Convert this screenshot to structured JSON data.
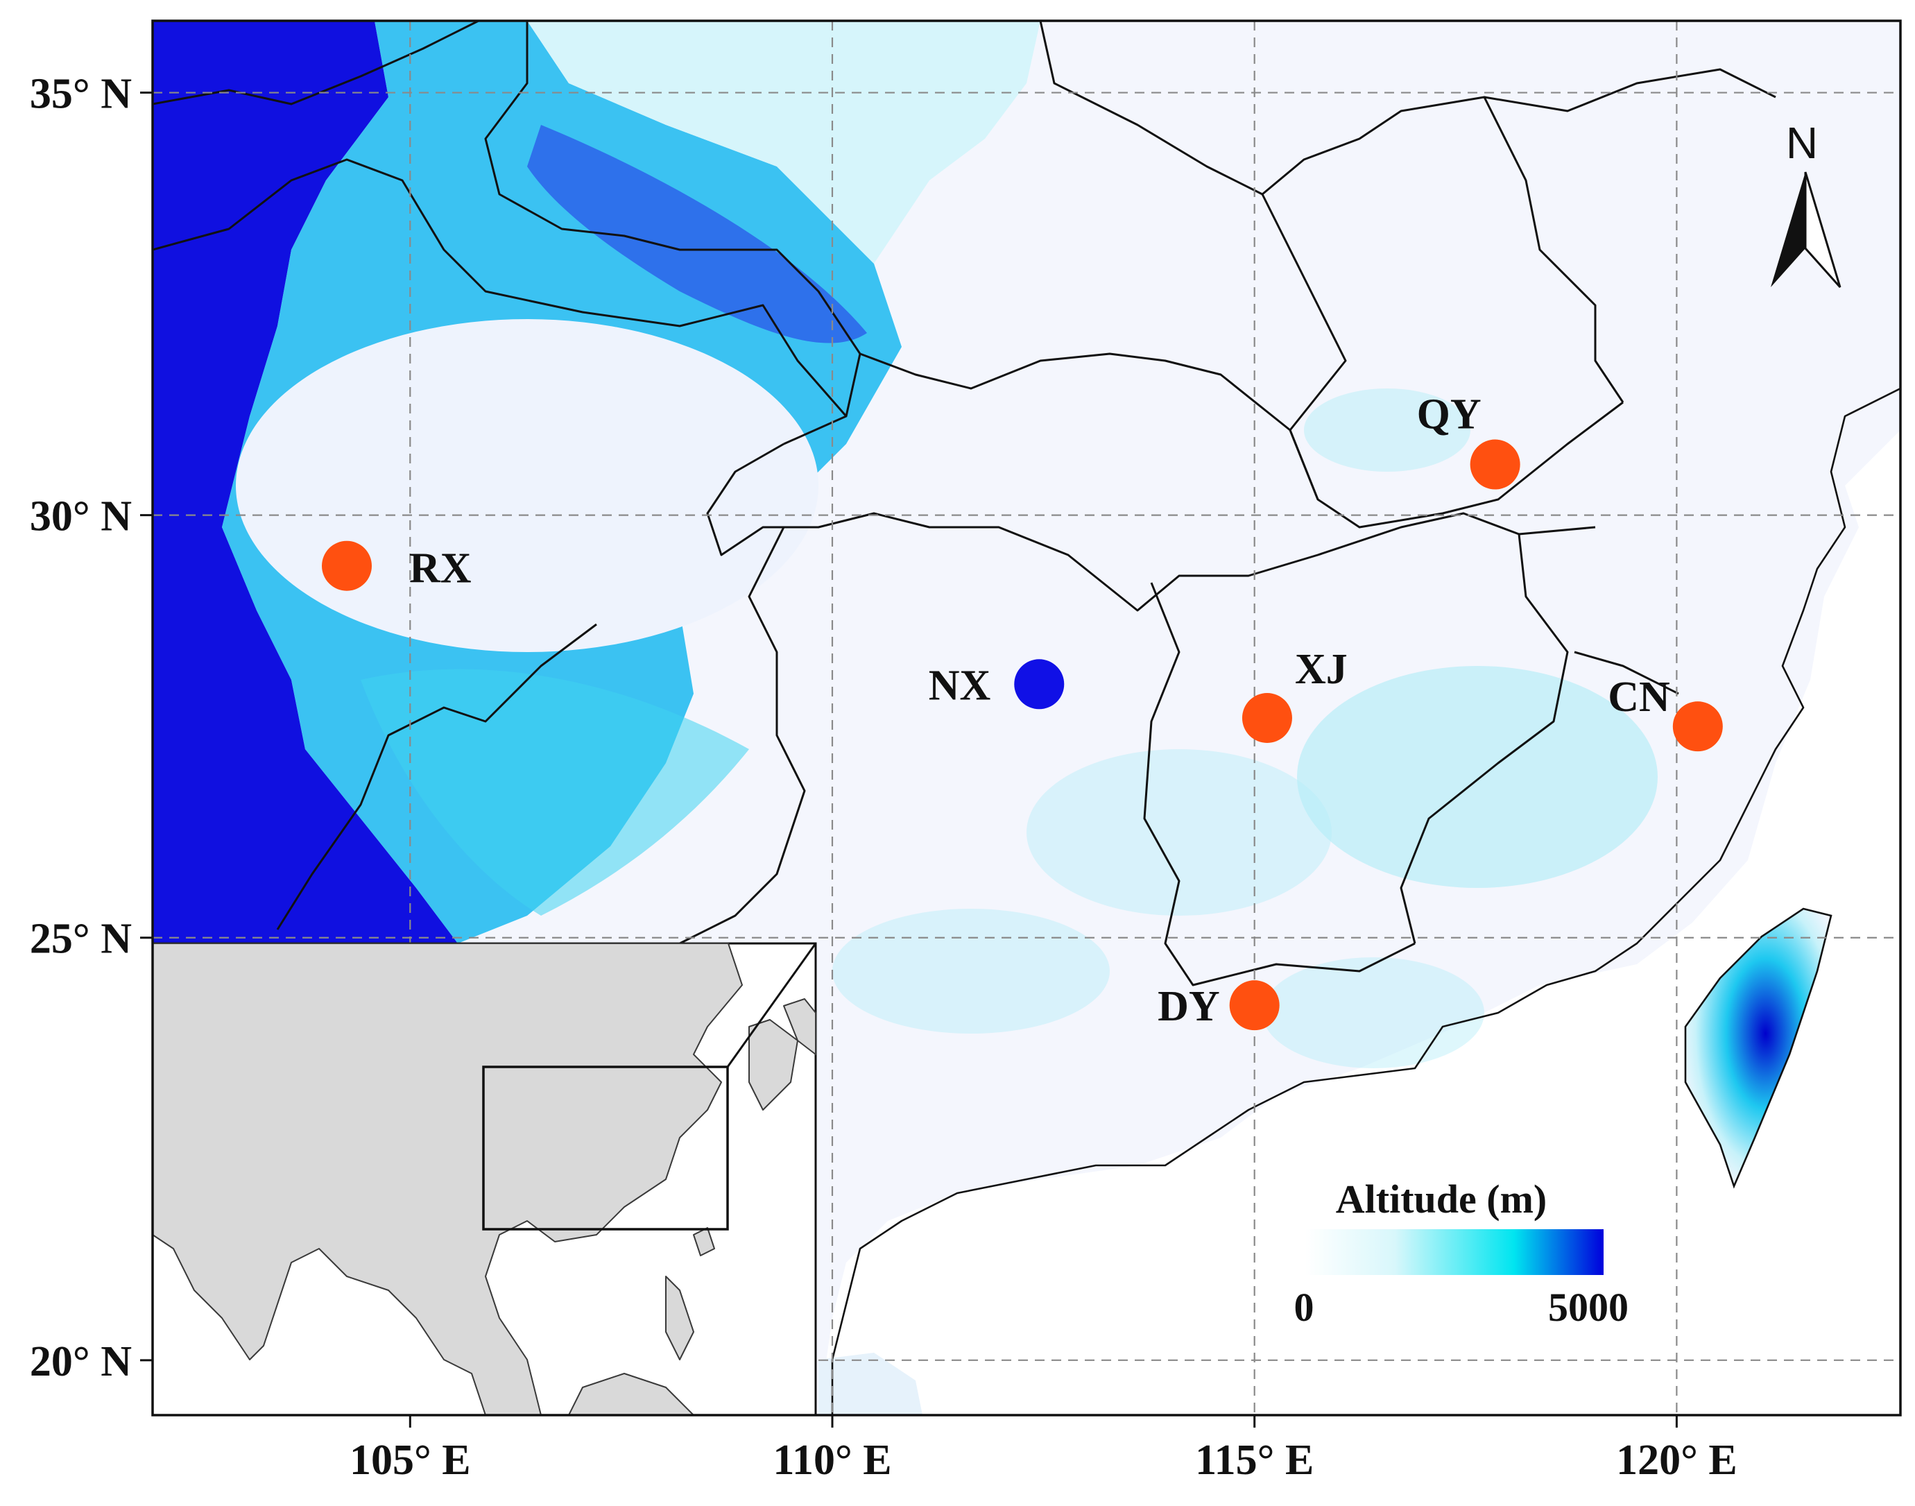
{
  "map": {
    "x_axis": {
      "ticks": [
        {
          "value": 105,
          "label": "105° E"
        },
        {
          "value": 110,
          "label": "110° E"
        },
        {
          "value": 115,
          "label": "115° E"
        },
        {
          "value": 120,
          "label": "120° E"
        }
      ]
    },
    "y_axis": {
      "ticks": [
        {
          "value": 35,
          "label": "35° N"
        },
        {
          "value": 30,
          "label": "30° N"
        },
        {
          "value": 25,
          "label": "25° N"
        },
        {
          "value": 20,
          "label": "20° N"
        }
      ]
    },
    "extent": {
      "lon_min": 101.95,
      "lon_max": 122.65,
      "lat_min": 19.35,
      "lat_max": 35.85
    },
    "sites": [
      {
        "code": "RX",
        "lon": 104.25,
        "lat": 29.4,
        "color": "#ff5010"
      },
      {
        "code": "NX",
        "lon": 112.45,
        "lat": 28.0,
        "color": "#1010e6"
      },
      {
        "code": "XJ",
        "lon": 115.15,
        "lat": 27.6,
        "color": "#ff5010"
      },
      {
        "code": "QY",
        "lon": 117.85,
        "lat": 30.6,
        "color": "#ff5010"
      },
      {
        "code": "CN",
        "lon": 120.25,
        "lat": 27.5,
        "color": "#ff5010"
      },
      {
        "code": "DY",
        "lon": 115.0,
        "lat": 24.2,
        "color": "#ff5010"
      }
    ],
    "north_arrow": "N",
    "legend": {
      "title": "Altitude (m)",
      "min_label": "0",
      "max_label": "5000",
      "colors": [
        "#ffffff",
        "#00e5f0",
        "#0000dd"
      ]
    }
  }
}
